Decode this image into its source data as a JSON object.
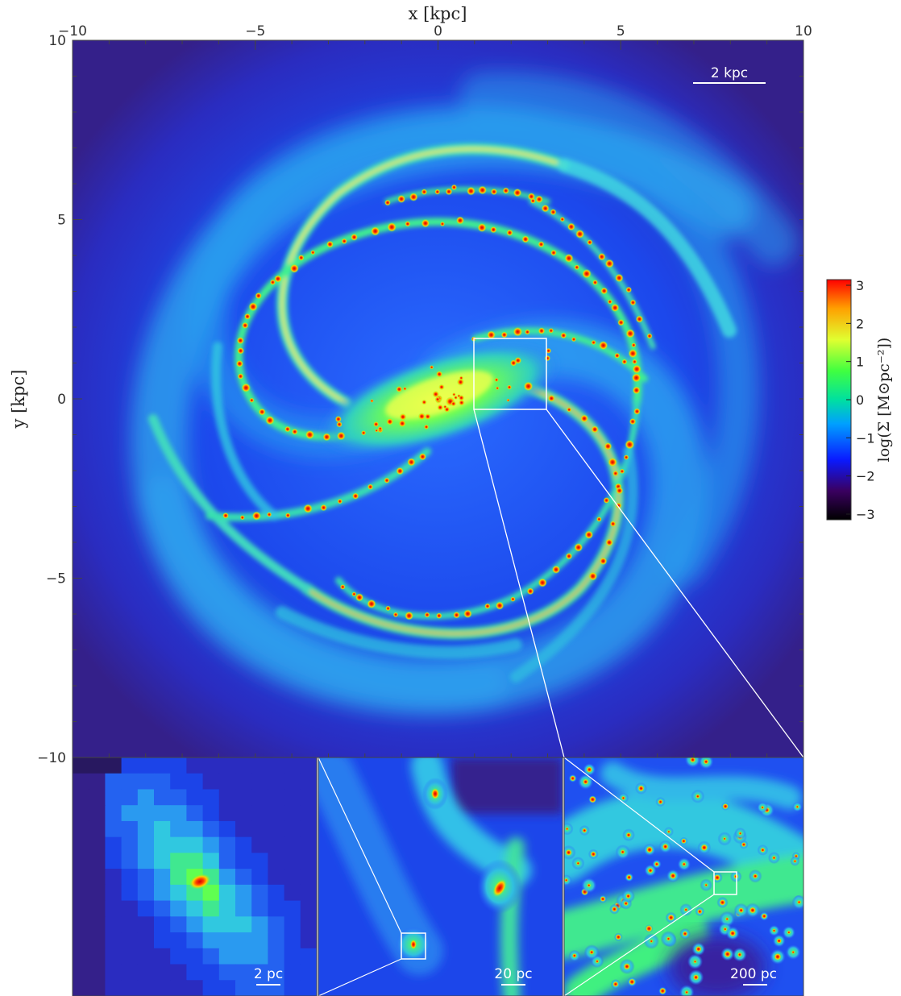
{
  "axes": {
    "x_label": "x [kpc]",
    "y_label": "y [kpc]",
    "x_ticks": [
      "−10",
      "−5",
      "0",
      "5",
      "10"
    ],
    "y_ticks": [
      "10",
      "5",
      "0",
      "−5",
      "−10"
    ]
  },
  "main_panel": {
    "scale_bar_label": "2 kpc"
  },
  "zoom_panels": [
    {
      "scale_bar_label": "2 pc"
    },
    {
      "scale_bar_label": "20 pc"
    },
    {
      "scale_bar_label": "200 pc"
    }
  ],
  "colorbar": {
    "label": "log(Σ [M⊙pc⁻²])",
    "ticks": [
      "3",
      "2",
      "1",
      "0",
      "−1",
      "−2",
      "−3"
    ],
    "colors": [
      "#000000",
      "#3a0060",
      "#0a1aff",
      "#00a0ff",
      "#00e0a0",
      "#40ff40",
      "#e0ff30",
      "#ffa000",
      "#ff0000"
    ]
  },
  "palette": {
    "background_blue": "#1840e8",
    "dark_edge": "#30208a",
    "arm_cyan": "#30c8f0",
    "arm_green": "#40f070",
    "hot_red": "#ff2000"
  }
}
